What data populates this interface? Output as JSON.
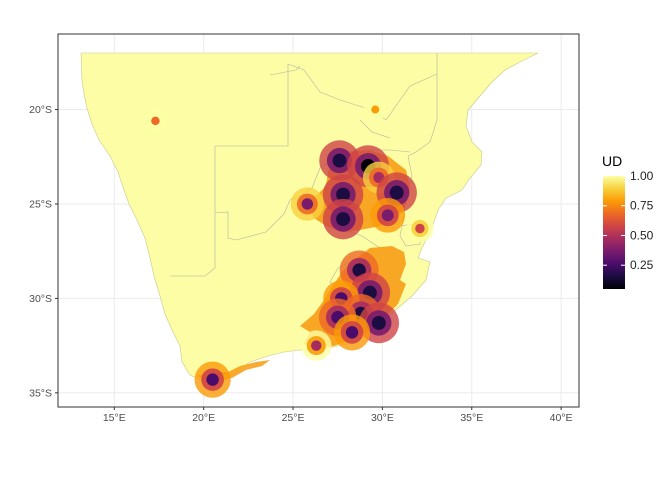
{
  "map": {
    "x_axis": {
      "ticks": [
        {
          "value": 15,
          "label": "15°E"
        },
        {
          "value": 20,
          "label": "20°E"
        },
        {
          "value": 25,
          "label": "25°E"
        },
        {
          "value": 30,
          "label": "30°E"
        },
        {
          "value": 35,
          "label": "35°E"
        },
        {
          "value": 40,
          "label": "40°E"
        }
      ],
      "range": [
        11.85,
        41.0
      ]
    },
    "y_axis": {
      "ticks": [
        {
          "value": -20,
          "label": "20°S"
        },
        {
          "value": -25,
          "label": "25°S"
        },
        {
          "value": -30,
          "label": "30°S"
        },
        {
          "value": -35,
          "label": "35°S"
        }
      ],
      "range": [
        -35.75,
        -16.0
      ]
    },
    "grid": true,
    "land_color": "#FCFDA4",
    "border_color": "#b5b5a0",
    "panel_border_color": "#333333",
    "grid_color": "#ebebeb"
  },
  "legend": {
    "title": "UD",
    "labels": [
      "1.00",
      "0.75",
      "0.50",
      "0.25"
    ],
    "label_values": [
      1.0,
      0.75,
      0.5,
      0.25
    ],
    "range": [
      0.05,
      1.0
    ],
    "position": "right",
    "colors": [
      "#000004",
      "#1B0C41",
      "#4A0C6B",
      "#781C6D",
      "#A52C60",
      "#CF4446",
      "#ED6925",
      "#FB9B06",
      "#F7D13D",
      "#FCFFA4"
    ]
  },
  "chart_data": {
    "type": "heatmap",
    "value_name": "UD",
    "hotspots": [
      {
        "lon": 27.6,
        "lat": -22.7,
        "ud": 0.15
      },
      {
        "lon": 29.2,
        "lat": -23.0,
        "ud": 0.1
      },
      {
        "lon": 29.8,
        "lat": -23.6,
        "ud": 0.45
      },
      {
        "lon": 30.8,
        "lat": -24.4,
        "ud": 0.15
      },
      {
        "lon": 27.8,
        "lat": -24.5,
        "ud": 0.15
      },
      {
        "lon": 27.8,
        "lat": -25.8,
        "ud": 0.15
      },
      {
        "lon": 25.8,
        "lat": -25.0,
        "ud": 0.4
      },
      {
        "lon": 30.3,
        "lat": -25.6,
        "ud": 0.35
      },
      {
        "lon": 32.1,
        "lat": -26.3,
        "ud": 0.6
      },
      {
        "lon": 28.7,
        "lat": -28.5,
        "ud": 0.2
      },
      {
        "lon": 29.3,
        "lat": -29.7,
        "ud": 0.15
      },
      {
        "lon": 27.7,
        "lat": -30.0,
        "ud": 0.3
      },
      {
        "lon": 28.8,
        "lat": -30.8,
        "ud": 0.2
      },
      {
        "lon": 27.5,
        "lat": -31.0,
        "ud": 0.25
      },
      {
        "lon": 29.8,
        "lat": -31.3,
        "ud": 0.15
      },
      {
        "lon": 28.3,
        "lat": -31.8,
        "ud": 0.3
      },
      {
        "lon": 26.3,
        "lat": -32.5,
        "ud": 0.5
      },
      {
        "lon": 20.5,
        "lat": -34.3,
        "ud": 0.3
      },
      {
        "lon": 17.3,
        "lat": -20.6,
        "ud": 0.7
      },
      {
        "lon": 29.6,
        "lat": -20.0,
        "ud": 0.75
      }
    ]
  }
}
